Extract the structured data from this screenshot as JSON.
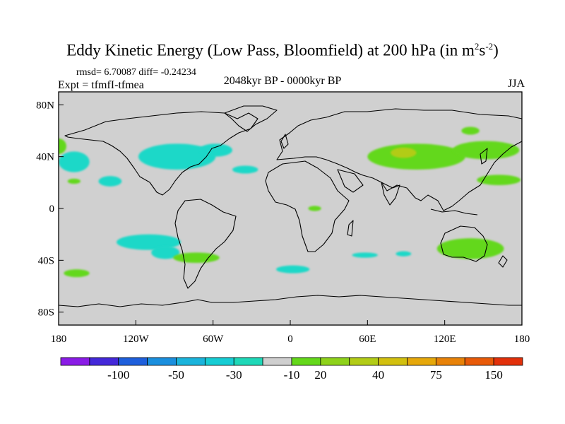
{
  "chart_data": {
    "type": "heatmap",
    "title": "Eddy Kinetic Energy (Low Pass, Bloomfield) at 200 hPa (in m",
    "title_unit_sup1": "2",
    "title_unit_s": "s",
    "title_unit_sup2": "-2",
    "title_close": ")",
    "stats_text": "rmsd= 6.70087 diff= -0.24234",
    "experiment_text": "Expt = tfmfI-tfmea",
    "period_text": "2048kyr BP - 0000kyr BP",
    "season_text": "JJA",
    "x_axis": {
      "range": [
        -180,
        180
      ],
      "ticks": [
        -180,
        -120,
        -60,
        0,
        60,
        120,
        180
      ],
      "tick_labels": [
        "180",
        "120W",
        "60W",
        "0",
        "60E",
        "120E",
        "180"
      ]
    },
    "y_axis": {
      "range": [
        -90,
        90
      ],
      "ticks": [
        80,
        40,
        0,
        -40,
        -80
      ],
      "tick_labels": [
        "80N",
        "40N",
        "0",
        "40S",
        "80S"
      ]
    },
    "colorbar": {
      "labels": [
        "-100",
        "-50",
        "-30",
        "-10",
        "20",
        "40",
        "75",
        "150"
      ],
      "colors": [
        "#8a1ce6",
        "#4428d9",
        "#1e5fdc",
        "#1a8fde",
        "#1ab4dc",
        "#16cdd4",
        "#1ed8b8",
        "#cfcfcf",
        "#64d81a",
        "#8ed21a",
        "#b2cc16",
        "#d2c00e",
        "#e6a80a",
        "#e88208",
        "#e85a08",
        "#e2300a"
      ]
    },
    "anomaly_regions": [
      {
        "lon": -88,
        "lat": 40,
        "rx": 30,
        "ry": 10,
        "value": -15
      },
      {
        "lon": -58,
        "lat": 45,
        "rx": 13,
        "ry": 5,
        "value": -20
      },
      {
        "lon": -168,
        "lat": 36,
        "rx": 12,
        "ry": 8,
        "value": -15
      },
      {
        "lon": -140,
        "lat": 21,
        "rx": 9,
        "ry": 4,
        "value": -15
      },
      {
        "lon": -110,
        "lat": -26,
        "rx": 25,
        "ry": 6,
        "value": -15
      },
      {
        "lon": -97,
        "lat": -34,
        "rx": 11,
        "ry": 5,
        "value": -15
      },
      {
        "lon": -35,
        "lat": 30,
        "rx": 10,
        "ry": 3,
        "value": -15
      },
      {
        "lon": 2,
        "lat": -47,
        "rx": 13,
        "ry": 3,
        "value": -15
      },
      {
        "lon": 58,
        "lat": -36,
        "rx": 10,
        "ry": 2,
        "value": -15
      },
      {
        "lon": 88,
        "lat": -35,
        "rx": 6,
        "ry": 2,
        "value": -15
      },
      {
        "lon": 98,
        "lat": 40,
        "rx": 38,
        "ry": 10,
        "value": 20
      },
      {
        "lon": 88,
        "lat": 43,
        "rx": 10,
        "ry": 4,
        "value": 40
      },
      {
        "lon": 152,
        "lat": 45,
        "rx": 26,
        "ry": 7,
        "value": 20
      },
      {
        "lon": 140,
        "lat": 60,
        "rx": 7,
        "ry": 3,
        "value": 20
      },
      {
        "lon": 162,
        "lat": 22,
        "rx": 17,
        "ry": 4,
        "value": 20
      },
      {
        "lon": 140,
        "lat": -31,
        "rx": 26,
        "ry": 8,
        "value": 20
      },
      {
        "lon": -73,
        "lat": -38,
        "rx": 18,
        "ry": 4,
        "value": 20
      },
      {
        "lon": -166,
        "lat": -50,
        "rx": 10,
        "ry": 3,
        "value": 20
      },
      {
        "lon": 19,
        "lat": 0,
        "rx": 5,
        "ry": 2,
        "value": 20
      },
      {
        "lon": -180,
        "lat": 48,
        "rx": 6,
        "ry": 6,
        "value": 20
      },
      {
        "lon": -168,
        "lat": 21,
        "rx": 5,
        "ry": 2,
        "value": 20
      }
    ]
  }
}
